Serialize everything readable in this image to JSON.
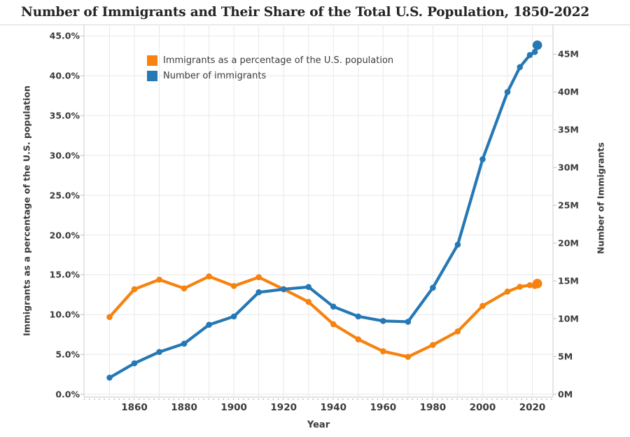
{
  "title": "Number of Immigrants and Their Share of the Total U.S. Population, 1850-2022",
  "colors": {
    "share_orange": "#f7820e",
    "count_blue": "#2578b5",
    "gridline": "#e8e8e8",
    "axis_line": "#d4d4d4",
    "tick_mark": "#c9c9c9",
    "tick_text": "#3b3b3b",
    "title_text": "#252525"
  },
  "legend": {
    "items": [
      {
        "label": "Immigrants as a percentage of the U.S. population",
        "series": "share"
      },
      {
        "label": "Number of immigrants",
        "series": "count"
      }
    ]
  },
  "axes": {
    "x": {
      "label": "Year",
      "tick_years": [
        1860,
        1880,
        1900,
        1920,
        1940,
        1960,
        1980,
        2000,
        2020
      ]
    },
    "left": {
      "label": "Immigrants as a percentage of the U.S. population",
      "tick_labels": [
        "0.0%",
        "5.0%",
        "10.0%",
        "15.0%",
        "20.0%",
        "25.0%",
        "30.0%",
        "35.0%",
        "40.0%",
        "45.0%"
      ]
    },
    "right": {
      "label": "Number of Immigrants",
      "tick_labels": [
        "0M",
        "5M",
        "10M",
        "15M",
        "20M",
        "25M",
        "30M",
        "35M",
        "40M",
        "45M"
      ]
    }
  },
  "chart_data": {
    "type": "line",
    "title": "Number of Immigrants and Their Share of the Total U.S. Population, 1850-2022",
    "xlabel": "Year",
    "x": [
      1850,
      1860,
      1870,
      1880,
      1890,
      1900,
      1910,
      1920,
      1930,
      1940,
      1950,
      1960,
      1970,
      1980,
      1990,
      2000,
      2010,
      2015,
      2019,
      2021,
      2022
    ],
    "series": [
      {
        "name": "Immigrants as a percentage of the U.S. population",
        "axis": "left",
        "unit": "percent",
        "color": "#f7820e",
        "values": [
          9.7,
          13.2,
          14.4,
          13.3,
          14.8,
          13.6,
          14.7,
          13.2,
          11.6,
          8.8,
          6.9,
          5.4,
          4.7,
          6.2,
          7.9,
          11.1,
          12.9,
          13.5,
          13.7,
          13.6,
          13.9
        ]
      },
      {
        "name": "Number of immigrants",
        "axis": "right",
        "unit": "millions",
        "color": "#2578b5",
        "values": [
          2.2,
          4.1,
          5.6,
          6.7,
          9.2,
          10.3,
          13.5,
          13.9,
          14.2,
          11.6,
          10.3,
          9.7,
          9.6,
          14.1,
          19.8,
          31.1,
          40.0,
          43.3,
          44.9,
          45.3,
          46.2
        ]
      }
    ],
    "left_axis": {
      "label": "Immigrants as a percentage of the U.S. population",
      "range_percent": [
        0,
        45
      ],
      "tick_step": 5
    },
    "right_axis": {
      "label": "Number of Immigrants",
      "range_millions": [
        0,
        45
      ],
      "tick_step": 5
    },
    "x_axis": {
      "label": "Year",
      "range": [
        1840,
        2028
      ],
      "gridline_years_step": 10
    },
    "grid": true,
    "legend_position": "top-left-inside"
  }
}
